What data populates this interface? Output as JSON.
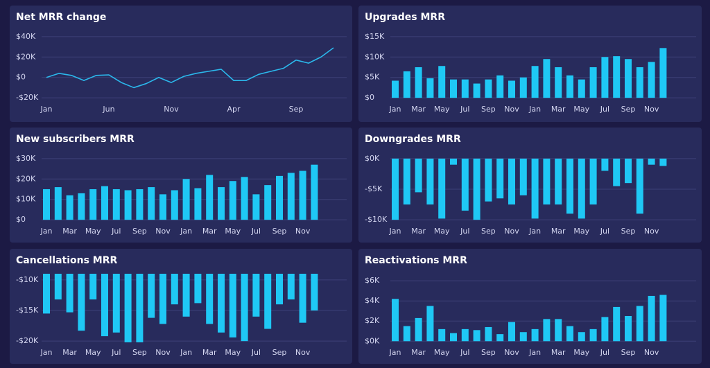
{
  "chart_data": [
    {
      "type": "line",
      "title": "Net MRR change",
      "color": "#2bb8ec",
      "categories": [
        "Jan",
        null,
        null,
        null,
        null,
        "Jun",
        null,
        null,
        null,
        null,
        "Nov",
        null,
        null,
        null,
        null,
        "Apr",
        null,
        null,
        null,
        null,
        "Sep",
        null,
        null,
        null
      ],
      "values": [
        0,
        4000,
        2000,
        -3000,
        2000,
        2500,
        -5000,
        -10000,
        -6000,
        0,
        -5000,
        1000,
        4000,
        6000,
        8000,
        -3000,
        -3000,
        3000,
        6000,
        9000,
        17000,
        14000,
        20000,
        29000
      ],
      "ylim": [
        -26000,
        46000
      ],
      "yticks": [
        {
          "value": 40000,
          "label": "$40K"
        },
        {
          "value": 20000,
          "label": "$20K"
        },
        {
          "value": 0,
          "label": "$0"
        },
        {
          "value": -20000,
          "label": "-$20K"
        }
      ]
    },
    {
      "type": "bar",
      "title": "Upgrades MRR",
      "color": "#1fc8f5",
      "categories": [
        "Jan",
        null,
        "Mar",
        null,
        "May",
        null,
        "Jul",
        null,
        "Sep",
        null,
        "Nov",
        null,
        "Jan",
        null,
        "Mar",
        null,
        "May",
        null,
        "Jul",
        null,
        "Sep",
        null,
        "Nov",
        null
      ],
      "values": [
        4200,
        6500,
        7500,
        4800,
        7800,
        4500,
        4500,
        3500,
        4500,
        5500,
        4200,
        5000,
        7800,
        9500,
        7500,
        5500,
        4500,
        7500,
        10000,
        10200,
        9500,
        7500,
        8800,
        12200
      ],
      "ylim": [
        -1500,
        16500
      ],
      "yticks": [
        {
          "value": 15000,
          "label": "$15K"
        },
        {
          "value": 10000,
          "label": "$10K"
        },
        {
          "value": 5000,
          "label": "$5K"
        },
        {
          "value": 0,
          "label": "$0"
        }
      ]
    },
    {
      "type": "bar",
      "title": "New subscribers MRR",
      "color": "#1fc8f5",
      "categories": [
        "Jan",
        null,
        "Mar",
        null,
        "May",
        null,
        "Jul",
        null,
        "Sep",
        null,
        "Nov",
        null,
        "Jan",
        null,
        "Mar",
        null,
        "May",
        null,
        "Jul",
        null,
        "Sep",
        null,
        "Nov",
        null
      ],
      "values": [
        15000,
        16000,
        12000,
        13000,
        15000,
        16500,
        15000,
        14500,
        15000,
        16000,
        12500,
        14500,
        20000,
        15500,
        22000,
        16000,
        19000,
        21000,
        12500,
        17000,
        21500,
        23000,
        24000,
        27000
      ],
      "ylim": [
        -3000,
        33000
      ],
      "yticks": [
        {
          "value": 30000,
          "label": "$30K"
        },
        {
          "value": 20000,
          "label": "$20K"
        },
        {
          "value": 10000,
          "label": "$10K"
        },
        {
          "value": 0,
          "label": "$0"
        }
      ]
    },
    {
      "type": "bar",
      "title": "Downgrades MRR",
      "color": "#1fc8f5",
      "categories": [
        "Jan",
        null,
        "Mar",
        null,
        "May",
        null,
        "Jul",
        null,
        "Sep",
        null,
        "Nov",
        null,
        "Jan",
        null,
        "Mar",
        null,
        "May",
        null,
        "Jul",
        null,
        "Sep",
        null,
        "Nov",
        null
      ],
      "values": [
        -10000,
        -7500,
        -5500,
        -7500,
        -9800,
        -1000,
        -8500,
        -10000,
        -7000,
        -6500,
        -7500,
        -6000,
        -9800,
        -7500,
        -7500,
        -9000,
        -9800,
        -7500,
        -2000,
        -4500,
        -4000,
        -9000,
        -1000,
        -1200
      ],
      "ylim": [
        -11000,
        1000
      ],
      "yticks": [
        {
          "value": 0,
          "label": "$0K"
        },
        {
          "value": -5000,
          "label": "-$5K"
        },
        {
          "value": -10000,
          "label": "-$10K"
        }
      ]
    },
    {
      "type": "bar",
      "title": "Cancellations MRR",
      "color": "#1fc8f5",
      "categories": [
        "Jan",
        null,
        "Mar",
        null,
        "May",
        null,
        "Jul",
        null,
        "Sep",
        null,
        "Nov",
        null,
        "Jan",
        null,
        "Mar",
        null,
        "May",
        null,
        "Jul",
        null,
        "Sep",
        null,
        "Nov",
        null
      ],
      "values": [
        -15500,
        -13200,
        -15300,
        -18300,
        -13200,
        -19200,
        -18600,
        -20200,
        -20200,
        -16200,
        -17200,
        -14000,
        -16000,
        -13800,
        -17200,
        -18600,
        -19400,
        -20000,
        -16000,
        -18000,
        -14000,
        -13200,
        -17000,
        -15000
      ],
      "ylim": [
        -21000,
        -9000
      ],
      "yticks": [
        {
          "value": -10000,
          "label": "-$10K"
        },
        {
          "value": -15000,
          "label": "-$15K"
        },
        {
          "value": -20000,
          "label": "-$20K"
        }
      ]
    },
    {
      "type": "bar",
      "title": "Reactivations MRR",
      "color": "#1fc8f5",
      "categories": [
        "Jan",
        null,
        "Mar",
        null,
        "May",
        null,
        "Jul",
        null,
        "Sep",
        null,
        "Nov",
        null,
        "Jan",
        null,
        "Mar",
        null,
        "May",
        null,
        "Jul",
        null,
        "Sep",
        null,
        "Nov",
        null
      ],
      "values": [
        4200,
        1500,
        2300,
        3500,
        1200,
        800,
        1200,
        1100,
        1400,
        700,
        1900,
        900,
        1200,
        2200,
        2200,
        1500,
        900,
        1200,
        2400,
        3400,
        2500,
        3500,
        4500,
        4600
      ],
      "ylim": [
        -600,
        6700
      ],
      "yticks": [
        {
          "value": 6000,
          "label": "$6K"
        },
        {
          "value": 4000,
          "label": "$4K"
        },
        {
          "value": 2000,
          "label": "$2K"
        },
        {
          "value": 0,
          "label": "$0K"
        }
      ]
    }
  ]
}
